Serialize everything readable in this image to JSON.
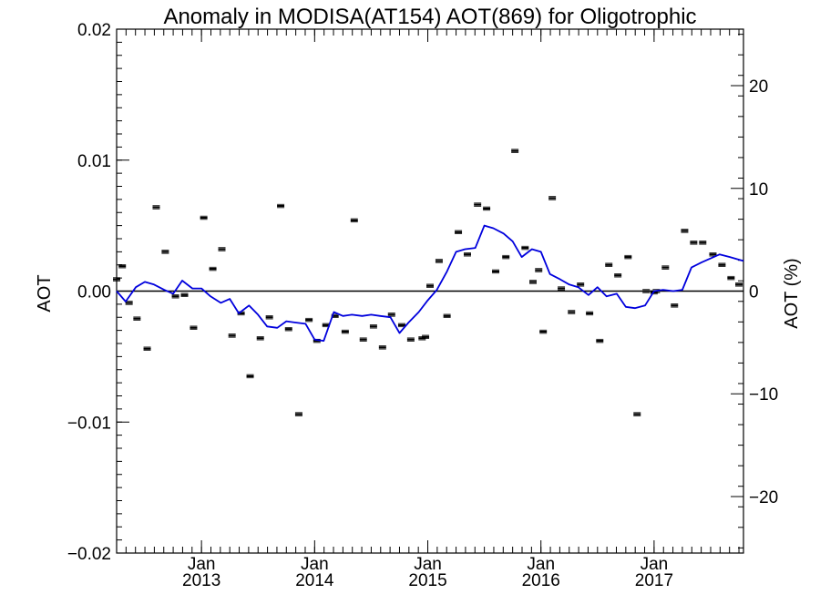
{
  "chart_data": {
    "type": "line",
    "title": "Anomaly in MODISA(AT154) AOT(869) for Oligotrophic",
    "ylabel": "AOT",
    "ylabel_right": "AOT (%)",
    "ylim": [
      -0.02,
      0.02
    ],
    "ylim_right": [
      -25.5,
      25.5
    ],
    "yticks": [
      -0.02,
      -0.01,
      0.0,
      0.01,
      0.02
    ],
    "yticks_right": [
      -20,
      -10,
      0,
      10,
      20
    ],
    "ytick_labels": [
      "−0.02",
      "−0.01",
      "0.00",
      "0.01",
      "0.02"
    ],
    "ytick_labels_right": [
      "−20",
      "−10",
      "0",
      "10",
      "20"
    ],
    "xlim": [
      2012.25,
      2017.79
    ],
    "xticks": [
      {
        "x": 2013.0,
        "month": "Jan",
        "year": "2013"
      },
      {
        "x": 2014.0,
        "month": "Jan",
        "year": "2014"
      },
      {
        "x": 2015.0,
        "month": "Jan",
        "year": "2015"
      },
      {
        "x": 2016.0,
        "month": "Jan",
        "year": "2016"
      },
      {
        "x": 2017.0,
        "month": "Jan",
        "year": "2017"
      }
    ],
    "zero_line": 0.0,
    "grid": false,
    "legend": "none",
    "colors": {
      "line": "#0000dd",
      "points": "#000000",
      "axes": "#000000"
    },
    "series": [
      {
        "kind": "line",
        "x": [
          2012.25,
          2012.33,
          2012.42,
          2012.5,
          2012.58,
          2012.67,
          2012.75,
          2012.83,
          2012.92,
          2013.0,
          2013.08,
          2013.17,
          2013.25,
          2013.33,
          2013.42,
          2013.5,
          2013.58,
          2013.67,
          2013.75,
          2013.83,
          2013.92,
          2014.0,
          2014.08,
          2014.17,
          2014.25,
          2014.33,
          2014.42,
          2014.5,
          2014.58,
          2014.67,
          2014.75,
          2014.83,
          2014.92,
          2015.0,
          2015.08,
          2015.17,
          2015.25,
          2015.33,
          2015.42,
          2015.5,
          2015.58,
          2015.67,
          2015.75,
          2015.83,
          2015.92,
          2016.0,
          2016.08,
          2016.17,
          2016.25,
          2016.33,
          2016.42,
          2016.5,
          2016.58,
          2016.67,
          2016.75,
          2016.83,
          2016.92,
          2017.0,
          2017.08,
          2017.17,
          2017.25,
          2017.33,
          2017.42,
          2017.5,
          2017.58,
          2017.67,
          2017.75,
          2017.79
        ],
        "values": [
          0.0,
          -0.0008,
          0.0003,
          0.0007,
          0.0005,
          0.0001,
          -0.0002,
          0.0008,
          0.0002,
          0.0002,
          -0.0004,
          -0.0009,
          -0.0006,
          -0.0017,
          -0.0011,
          -0.0018,
          -0.0027,
          -0.0028,
          -0.0023,
          -0.0024,
          -0.0025,
          -0.0037,
          -0.0038,
          -0.0016,
          -0.0019,
          -0.0018,
          -0.0019,
          -0.0018,
          -0.0019,
          -0.002,
          -0.0032,
          -0.0024,
          -0.0016,
          -0.0007,
          0.0001,
          0.0015,
          0.003,
          0.0032,
          0.0033,
          0.005,
          0.0048,
          0.0044,
          0.0038,
          0.0026,
          0.0032,
          0.003,
          0.0013,
          0.0009,
          0.0005,
          0.0003,
          -0.0003,
          0.0003,
          -0.0004,
          -0.0002,
          -0.0012,
          -0.0013,
          -0.0011,
          0.0,
          0.0001,
          0.0,
          0.0001,
          0.0018,
          0.0022,
          0.0025,
          0.0028,
          0.0026,
          0.0024,
          0.0023
        ]
      },
      {
        "kind": "points",
        "x": [
          2012.25,
          2012.3,
          2012.36,
          2012.43,
          2012.52,
          2012.6,
          2012.68,
          2012.77,
          2012.85,
          2012.93,
          2013.02,
          2013.1,
          2013.18,
          2013.27,
          2013.35,
          2013.43,
          2013.52,
          2013.6,
          2013.7,
          2013.77,
          2013.86,
          2013.95,
          2014.02,
          2014.1,
          2014.18,
          2014.27,
          2014.35,
          2014.43,
          2014.52,
          2014.6,
          2014.68,
          2014.77,
          2014.85,
          2014.95,
          2014.98,
          2015.02,
          2015.1,
          2015.17,
          2015.27,
          2015.35,
          2015.44,
          2015.52,
          2015.6,
          2015.69,
          2015.77,
          2015.86,
          2015.93,
          2015.98,
          2016.02,
          2016.1,
          2016.18,
          2016.27,
          2016.35,
          2016.43,
          2016.52,
          2016.6,
          2016.68,
          2016.77,
          2016.85,
          2016.93,
          2017.0,
          2017.02,
          2017.1,
          2017.18,
          2017.27,
          2017.35,
          2017.43,
          2017.52,
          2017.6,
          2017.68,
          2017.75
        ],
        "values": [
          0.0009,
          0.0019,
          -0.0009,
          -0.0021,
          -0.0044,
          0.0064,
          0.003,
          -0.0004,
          -0.0003,
          -0.0028,
          0.0056,
          0.0017,
          0.0032,
          -0.0034,
          -0.0017,
          -0.0065,
          -0.0036,
          -0.002,
          0.0065,
          -0.0029,
          -0.0094,
          -0.0022,
          -0.0038,
          -0.0026,
          -0.0019,
          -0.0031,
          0.0054,
          -0.0037,
          -0.0027,
          -0.0043,
          -0.0018,
          -0.0026,
          -0.0037,
          -0.0036,
          -0.0035,
          0.0004,
          0.0023,
          -0.0019,
          0.0045,
          0.0028,
          0.0066,
          0.0063,
          0.0015,
          0.0026,
          0.0107,
          0.0033,
          0.0007,
          0.0016,
          -0.0031,
          0.0071,
          0.0002,
          -0.0016,
          0.0005,
          -0.0017,
          -0.0038,
          0.002,
          0.0012,
          0.0026,
          -0.0094,
          0.0,
          -0.0001,
          0.0,
          0.0018,
          -0.0011,
          0.0046,
          0.0037,
          0.0037,
          0.0028,
          0.002,
          0.001,
          0.0005
        ]
      }
    ]
  }
}
